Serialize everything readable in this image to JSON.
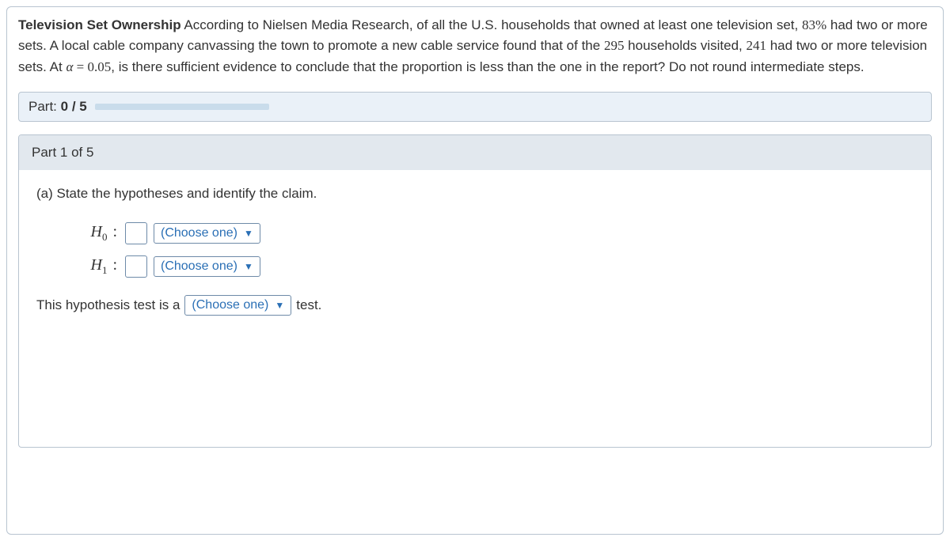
{
  "problem": {
    "title_bold": "Television Set Ownership",
    "sentence_before_pct": " According to Nielsen Media Research, of all the U.S. households that owned at least one television set, ",
    "pct": "83%",
    "sentence_mid1": " had two or more sets. A local cable company canvassing the town to promote a new cable service found that of the ",
    "n_households": "295",
    "sentence_mid2": " households visited, ",
    "n_success": "241",
    "sentence_mid3": " had two or more television sets. At ",
    "alpha_sym": "α",
    "equals": " = ",
    "alpha_val": "0.05",
    "sentence_end": ", is there sufficient evidence to conclude that the proportion is less than the one in the report? Do not round intermediate steps."
  },
  "progress": {
    "label_prefix": "Part: ",
    "current": "0",
    "sep": " / ",
    "total": "5"
  },
  "part": {
    "header": "Part 1 of 5",
    "question": "(a) State the hypotheses and identify the claim.",
    "h0_label": "H",
    "h0_sub": "0",
    "h1_label": "H",
    "h1_sub": "1",
    "choose_one": "(Choose one)",
    "sentence_pre": "This hypothesis test is a",
    "sentence_post": "test."
  },
  "style": {
    "link_color": "#2a6fb5",
    "border_color": "#b8c4d0"
  }
}
